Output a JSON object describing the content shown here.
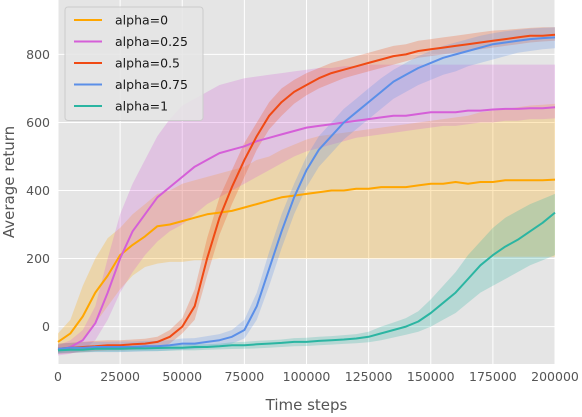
{
  "chart_data": {
    "type": "line",
    "xlabel": "Time steps",
    "ylabel": "Average return",
    "xlim": [
      0,
      200000
    ],
    "ylim": [
      -110,
      960
    ],
    "xticks": [
      0,
      25000,
      50000,
      75000,
      100000,
      125000,
      150000,
      175000,
      200000
    ],
    "yticks": [
      0,
      200,
      400,
      600,
      800
    ],
    "grid": true,
    "legend_position": "top-left",
    "background": "#e5e5e5",
    "x": [
      0,
      5000,
      10000,
      15000,
      20000,
      25000,
      30000,
      35000,
      40000,
      45000,
      50000,
      55000,
      60000,
      65000,
      70000,
      75000,
      80000,
      85000,
      90000,
      95000,
      100000,
      105000,
      110000,
      115000,
      120000,
      125000,
      130000,
      135000,
      140000,
      145000,
      150000,
      155000,
      160000,
      165000,
      170000,
      175000,
      180000,
      185000,
      190000,
      195000,
      200000
    ],
    "series": [
      {
        "name": "alpha=0",
        "color": "#ffa600",
        "values": [
          -45,
          -20,
          30,
          100,
          150,
          210,
          240,
          265,
          295,
          300,
          310,
          320,
          330,
          335,
          340,
          350,
          360,
          370,
          380,
          385,
          390,
          395,
          400,
          400,
          405,
          405,
          410,
          410,
          410,
          415,
          420,
          420,
          425,
          420,
          425,
          425,
          430,
          430,
          430,
          430,
          432
        ],
        "lower": [
          -75,
          -65,
          -40,
          10,
          60,
          110,
          150,
          175,
          185,
          190,
          190,
          195,
          195,
          200,
          200,
          200,
          200,
          200,
          200,
          200,
          200,
          200,
          200,
          200,
          200,
          200,
          200,
          200,
          200,
          200,
          200,
          200,
          200,
          200,
          200,
          205,
          205,
          205,
          205,
          205,
          205
        ],
        "upper": [
          -20,
          20,
          120,
          200,
          260,
          290,
          330,
          360,
          390,
          400,
          420,
          430,
          440,
          450,
          460,
          470,
          490,
          500,
          520,
          535,
          550,
          560,
          565,
          570,
          575,
          580,
          585,
          590,
          595,
          600,
          605,
          610,
          615,
          620,
          630,
          635,
          640,
          645,
          650,
          652,
          655
        ]
      },
      {
        "name": "alpha=0.25",
        "color": "#d55fd8",
        "values": [
          -70,
          -60,
          -40,
          10,
          100,
          200,
          280,
          330,
          380,
          410,
          440,
          470,
          490,
          510,
          520,
          530,
          545,
          555,
          565,
          575,
          585,
          590,
          595,
          600,
          605,
          610,
          615,
          620,
          620,
          625,
          630,
          630,
          630,
          635,
          635,
          638,
          640,
          640,
          642,
          642,
          645
        ],
        "lower": [
          -85,
          -80,
          -70,
          -40,
          20,
          100,
          160,
          210,
          250,
          280,
          300,
          330,
          360,
          380,
          400,
          420,
          440,
          460,
          480,
          500,
          515,
          525,
          535,
          545,
          555,
          560,
          565,
          570,
          575,
          580,
          585,
          590,
          590,
          595,
          600,
          600,
          605,
          605,
          610,
          610,
          612
        ],
        "upper": [
          -55,
          -40,
          -10,
          60,
          200,
          330,
          420,
          490,
          560,
          610,
          650,
          670,
          690,
          710,
          720,
          730,
          735,
          740,
          745,
          750,
          755,
          760,
          760,
          765,
          765,
          770,
          770,
          770,
          770,
          770,
          770,
          770,
          770,
          770,
          770,
          770,
          770,
          770,
          770,
          770,
          770
        ]
      },
      {
        "name": "alpha=0.5",
        "color": "#f04a14",
        "values": [
          -65,
          -62,
          -60,
          -58,
          -55,
          -55,
          -52,
          -50,
          -45,
          -30,
          0,
          60,
          200,
          320,
          410,
          490,
          560,
          620,
          660,
          690,
          710,
          730,
          745,
          755,
          765,
          775,
          785,
          795,
          800,
          810,
          815,
          820,
          825,
          830,
          835,
          840,
          845,
          850,
          855,
          855,
          858
        ],
        "lower": [
          -80,
          -78,
          -75,
          -72,
          -70,
          -70,
          -68,
          -66,
          -62,
          -50,
          -20,
          20,
          150,
          270,
          360,
          440,
          520,
          580,
          620,
          655,
          680,
          700,
          715,
          730,
          740,
          750,
          760,
          770,
          780,
          790,
          795,
          800,
          805,
          810,
          815,
          820,
          825,
          830,
          835,
          838,
          840
        ],
        "upper": [
          -50,
          -48,
          -45,
          -42,
          -40,
          -40,
          -38,
          -36,
          -30,
          -10,
          25,
          110,
          260,
          380,
          460,
          540,
          600,
          660,
          700,
          725,
          745,
          760,
          775,
          785,
          795,
          805,
          815,
          825,
          830,
          840,
          845,
          850,
          855,
          860,
          865,
          870,
          872,
          875,
          878,
          880,
          880
        ]
      },
      {
        "name": "alpha=0.75",
        "color": "#5b8fe8",
        "values": [
          -65,
          -62,
          -62,
          -60,
          -60,
          -60,
          -60,
          -58,
          -58,
          -55,
          -50,
          -50,
          -45,
          -40,
          -30,
          -10,
          60,
          170,
          280,
          380,
          460,
          520,
          560,
          600,
          630,
          660,
          690,
          720,
          740,
          760,
          775,
          790,
          800,
          810,
          820,
          830,
          835,
          840,
          845,
          848,
          850
        ],
        "lower": [
          -80,
          -78,
          -76,
          -75,
          -75,
          -75,
          -74,
          -73,
          -72,
          -70,
          -68,
          -66,
          -62,
          -58,
          -50,
          -35,
          20,
          120,
          230,
          330,
          410,
          470,
          510,
          550,
          580,
          610,
          640,
          670,
          690,
          710,
          725,
          740,
          750,
          765,
          775,
          785,
          795,
          805,
          810,
          815,
          818
        ],
        "upper": [
          -50,
          -48,
          -46,
          -45,
          -45,
          -44,
          -44,
          -42,
          -42,
          -40,
          -35,
          -34,
          -28,
          -22,
          -10,
          20,
          100,
          220,
          330,
          420,
          500,
          560,
          600,
          640,
          670,
          700,
          730,
          755,
          775,
          795,
          810,
          825,
          835,
          845,
          855,
          862,
          868,
          872,
          876,
          878,
          880
        ]
      },
      {
        "name": "alpha=1",
        "color": "#2bb5a2",
        "values": [
          -70,
          -68,
          -68,
          -65,
          -65,
          -65,
          -64,
          -64,
          -63,
          -62,
          -62,
          -60,
          -60,
          -58,
          -55,
          -55,
          -52,
          -50,
          -48,
          -45,
          -45,
          -42,
          -40,
          -38,
          -35,
          -30,
          -20,
          -10,
          0,
          15,
          40,
          70,
          100,
          140,
          180,
          210,
          235,
          255,
          280,
          305,
          335
        ],
        "lower": [
          -78,
          -76,
          -76,
          -74,
          -74,
          -74,
          -73,
          -72,
          -72,
          -71,
          -70,
          -70,
          -68,
          -67,
          -66,
          -65,
          -64,
          -62,
          -60,
          -58,
          -57,
          -55,
          -53,
          -51,
          -49,
          -46,
          -40,
          -32,
          -24,
          -15,
          0,
          20,
          40,
          70,
          100,
          120,
          140,
          160,
          180,
          195,
          210
        ],
        "upper": [
          -62,
          -60,
          -60,
          -58,
          -58,
          -57,
          -56,
          -56,
          -55,
          -54,
          -54,
          -52,
          -52,
          -50,
          -46,
          -45,
          -42,
          -40,
          -38,
          -34,
          -33,
          -30,
          -28,
          -25,
          -22,
          -15,
          0,
          12,
          25,
          45,
          80,
          120,
          160,
          210,
          250,
          290,
          320,
          340,
          360,
          375,
          390
        ]
      }
    ]
  }
}
